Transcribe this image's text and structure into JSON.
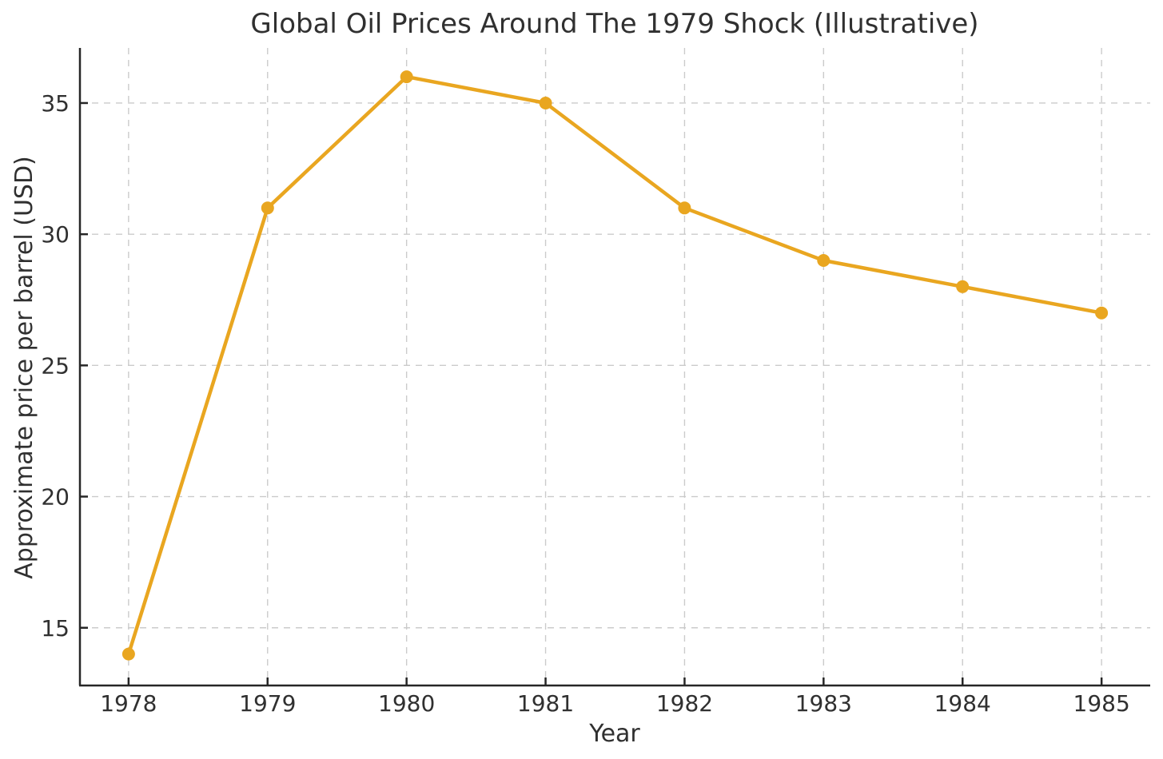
{
  "chart_data": {
    "type": "line",
    "title": "Global Oil Prices Around The 1979 Shock (Illustrative)",
    "xlabel": "Year",
    "ylabel": "Approximate price per barrel (USD)",
    "x": [
      1978,
      1979,
      1980,
      1981,
      1982,
      1983,
      1984,
      1985
    ],
    "values": [
      14,
      31,
      36,
      35,
      31,
      29,
      28,
      27
    ],
    "xticks": [
      "1978",
      "1979",
      "1980",
      "1981",
      "1982",
      "1983",
      "1984",
      "1985"
    ],
    "yticks": [
      "15",
      "20",
      "25",
      "30",
      "35"
    ],
    "xlim": [
      1977.65,
      1985.35
    ],
    "ylim": [
      12.8,
      37.1
    ],
    "grid": "dashed",
    "legend": "none",
    "marker": "circle",
    "colors": {
      "line": "#E9A620",
      "marker": "#E9A620",
      "grid": "#CBCBCB",
      "spine": "#262626",
      "text": "#303030",
      "background": "#FFFFFF"
    }
  }
}
